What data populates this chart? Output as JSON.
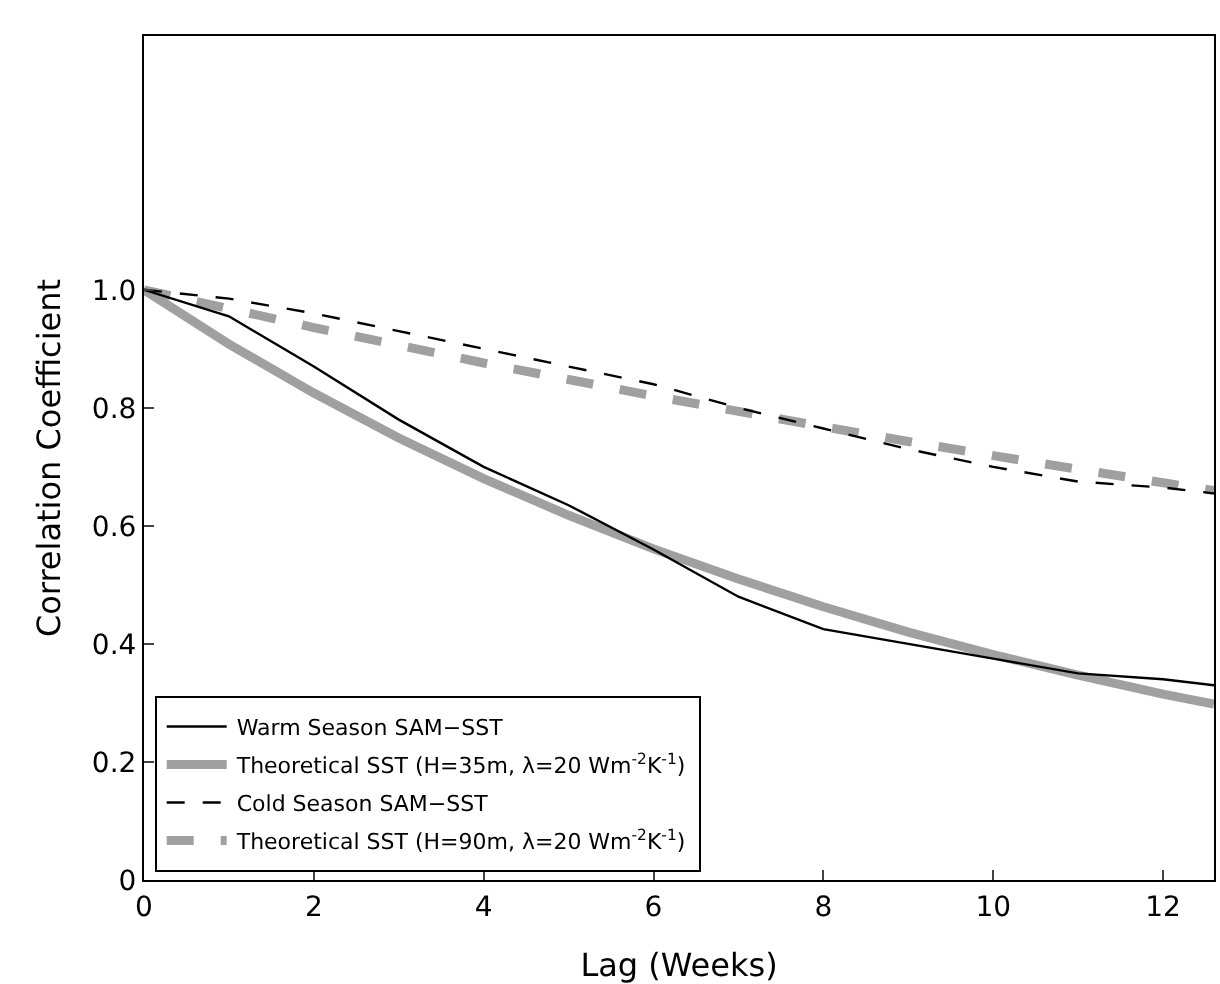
{
  "chart_data": {
    "type": "line",
    "xlabel": "Lag (Weeks)",
    "ylabel": "Correlation Coefficient",
    "x": [
      0,
      1,
      2,
      3,
      4,
      5,
      6,
      7,
      8,
      9,
      10,
      11,
      12,
      12.6
    ],
    "xlim": [
      0,
      12.6
    ],
    "xticks": [
      0,
      2,
      4,
      6,
      8,
      10,
      12
    ],
    "ylim": [
      0,
      1.43
    ],
    "yticks": [
      0,
      0.2,
      0.4,
      0.6,
      0.8,
      {
        "value": 1,
        "label": "1.0"
      }
    ],
    "grid": false,
    "legend": "bottom left",
    "marker": "none",
    "series": [
      {
        "name": "Warm Season SAM−SST",
        "color": "#000000",
        "line_style": "solid",
        "values": [
          1.0,
          0.955,
          0.87,
          0.78,
          0.7,
          0.635,
          0.56,
          0.48,
          0.425,
          0.4,
          0.375,
          0.35,
          0.34,
          0.33
        ]
      },
      {
        "name": "Theoretical SST (H=35m, λ=20 Wm$^{-2}$K$^{-1}$)",
        "color": "#a0a0a0",
        "line_style": "solid",
        "values": [
          1.0,
          0.908,
          0.825,
          0.749,
          0.68,
          0.618,
          0.561,
          0.51,
          0.463,
          0.42,
          0.382,
          0.347,
          0.315,
          0.298
        ]
      },
      {
        "name": "Cold Season SAM−SST",
        "color": "#000000",
        "line_style": "dashed",
        "values": [
          1.0,
          0.985,
          0.96,
          0.93,
          0.9,
          0.87,
          0.84,
          0.8,
          0.765,
          0.73,
          0.7,
          0.675,
          0.665,
          0.655
        ]
      },
      {
        "name": "Theoretical SST (H=90m, λ=20 Wm$^{-2}$K$^{-1}$)",
        "color": "#a0a0a0",
        "line_style": "dashed",
        "values": [
          1.0,
          0.968,
          0.936,
          0.906,
          0.876,
          0.848,
          0.82,
          0.794,
          0.768,
          0.743,
          0.719,
          0.696,
          0.673,
          0.66
        ]
      }
    ]
  }
}
